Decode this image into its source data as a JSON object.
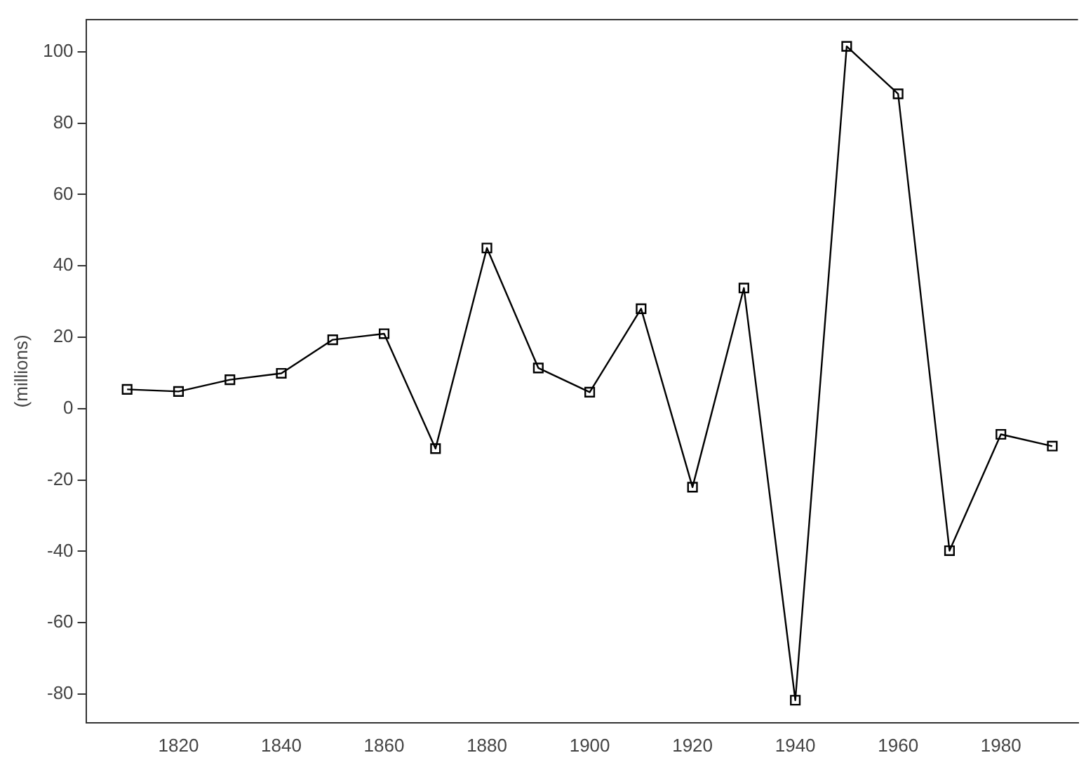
{
  "chart_data": {
    "type": "line",
    "ylabel": "(millions)",
    "x": [
      1810,
      1820,
      1830,
      1840,
      1850,
      1860,
      1870,
      1880,
      1890,
      1900,
      1910,
      1920,
      1930,
      1940,
      1950,
      1960,
      1970,
      1980,
      1990
    ],
    "series": [
      {
        "color": "#000000",
        "values": [
          5.4,
          4.8,
          8.1,
          9.9,
          19.3,
          21,
          -11.2,
          45,
          11.4,
          4.6,
          28,
          -22,
          33.8,
          -81.7,
          101.5,
          88.2,
          -39.8,
          -7.2,
          -10.5
        ]
      }
    ],
    "xlim": [
      1802,
      1995
    ],
    "xticks": [
      1820,
      1840,
      1860,
      1880,
      1900,
      1920,
      1940,
      1960,
      1980
    ],
    "ylim": [
      -88,
      109
    ],
    "yticks": [
      -80,
      -60,
      -40,
      -20,
      0,
      20,
      40,
      60,
      80,
      100
    ],
    "grid": false,
    "legend": false,
    "marker": "square",
    "line_style": "solid"
  }
}
